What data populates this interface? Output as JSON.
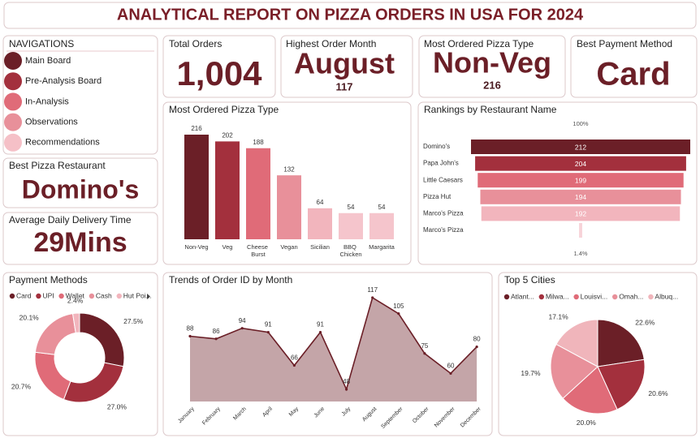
{
  "header": {
    "title": "ANALYTICAL REPORT ON PIZZA ORDERS IN USA FOR 2024"
  },
  "navigation": {
    "title": "NAVIGATIONS",
    "items": [
      {
        "label": "Main Board",
        "color": "#6b1f27"
      },
      {
        "label": "Pre-Analysis Board",
        "color": "#a3303d"
      },
      {
        "label": "In-Analysis",
        "color": "#e06b78"
      },
      {
        "label": "Observations",
        "color": "#e8909a"
      },
      {
        "label": "Recommendations",
        "color": "#f5c0c7"
      }
    ]
  },
  "kpis": {
    "total_orders": {
      "title": "Total Orders",
      "value": "1,004"
    },
    "highest_order_month": {
      "title": "Highest Order Month",
      "value": "August",
      "detail": 117
    },
    "most_ordered_type": {
      "title": "Most Ordered Pizza Type",
      "value": "Non-Veg",
      "detail": 216
    },
    "best_payment": {
      "title": "Best Payment Method",
      "value": "Card"
    },
    "best_restaurant": {
      "title": "Best Pizza Restaurant",
      "value": "Domino's"
    },
    "avg_delivery": {
      "title": "Average Daily Delivery Time",
      "value": "29Mins"
    }
  },
  "chart_data": [
    {
      "type": "bar",
      "title": "Most Ordered Pizza Type",
      "categories": [
        "Non-Veg",
        "Veg",
        "Cheese Burst",
        "Vegan",
        "Sicilian",
        "BBQ Chicken",
        "Margarita"
      ],
      "values": [
        216,
        202,
        188,
        132,
        64,
        54,
        54
      ],
      "colors": [
        "#6b1f27",
        "#a3303d",
        "#e06b78",
        "#e8909a",
        "#f2b5bd",
        "#f5c5cc",
        "#f5c5cc"
      ]
    },
    {
      "type": "funnel",
      "title": "Rankings by Restaurant Name",
      "categories": [
        "Domino's",
        "Papa John's",
        "Little Caesars",
        "Pizza Hut",
        "Marco's Pizza",
        "Marco's Pizza"
      ],
      "values": [
        212,
        204,
        199,
        194,
        192,
        3
      ],
      "value_labels": [
        "212",
        "204",
        "199",
        "194",
        "192",
        null
      ],
      "top_percent": "100%",
      "bottom_percent": "1.4%",
      "colors": [
        "#6b1f27",
        "#a3303d",
        "#e06b78",
        "#e8909a",
        "#f2b5bd",
        "#f7d3d8"
      ]
    },
    {
      "type": "pie",
      "donut": true,
      "title": "Payment Methods",
      "categories": [
        "Card",
        "UPI",
        "Wallet",
        "Cash",
        "Hut Poi..."
      ],
      "values": [
        27.5,
        27.0,
        20.7,
        20.1,
        2.4
      ],
      "value_labels": [
        "27.5%",
        "27.0%",
        "20.7%",
        "20.1%",
        "2.4%"
      ],
      "colors": [
        "#6b1f27",
        "#a3303d",
        "#e06b78",
        "#e8909a",
        "#f2b5bd"
      ]
    },
    {
      "type": "area",
      "title": "Trends of Order ID by Month",
      "categories": [
        "January",
        "February",
        "March",
        "April",
        "May",
        "June",
        "July",
        "August",
        "September",
        "October",
        "November",
        "December"
      ],
      "values": [
        88,
        86,
        94,
        91,
        66,
        91,
        48,
        117,
        105,
        75,
        60,
        80
      ],
      "color": "#6b1f27",
      "fill": "#c4a5a8"
    },
    {
      "type": "pie",
      "donut": false,
      "title": "Top 5 Cities",
      "categories": [
        "Atlant...",
        "Milwa...",
        "Louisvi...",
        "Omah...",
        "Albuq..."
      ],
      "values": [
        22.6,
        20.6,
        20.0,
        19.7,
        17.1
      ],
      "value_labels": [
        "22.6%",
        "20.6%",
        "20.0%",
        "19.7%",
        "17.1%"
      ],
      "colors": [
        "#6b1f27",
        "#a3303d",
        "#e06b78",
        "#e8909a",
        "#f0b5bb"
      ]
    }
  ]
}
